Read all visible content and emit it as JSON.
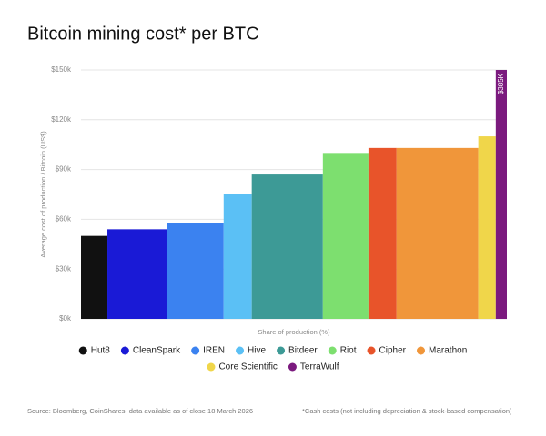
{
  "chart_data": {
    "type": "variable-width-bar",
    "title": "Bitcoin mining cost* per BTC",
    "y_label": "Average cost of production / Bitcoin (US$)",
    "x_label": "Share of production (%)",
    "categories": [
      "Hut8",
      "CleanSpark",
      "IREN",
      "Hive",
      "Bitdeer",
      "Riot",
      "Cipher",
      "Marathon",
      "Core Scientific",
      "TerraWulf"
    ],
    "values": [
      50000,
      54000,
      58000,
      75000,
      87000,
      100000,
      103000,
      103000,
      110000,
      385000
    ],
    "value_labels": [
      null,
      null,
      null,
      null,
      null,
      null,
      null,
      null,
      null,
      "$385K"
    ],
    "widths": [
      6.2,
      14.1,
      13.2,
      6.6,
      16.7,
      10.7,
      6.6,
      19.2,
      4.1,
      2.6
    ],
    "colors": [
      "#111111",
      "#1a1ad6",
      "#3b82f0",
      "#5bc0f5",
      "#3d9a96",
      "#7ddf6f",
      "#e8542a",
      "#f0963a",
      "#f0d64a",
      "#7b1a7e"
    ],
    "ylim": [
      0,
      150000
    ],
    "yticks": [
      {
        "value": 0,
        "label": "$0k"
      },
      {
        "value": 30000,
        "label": "$30k"
      },
      {
        "value": 60000,
        "label": "$60k"
      },
      {
        "value": 90000,
        "label": "$90k"
      },
      {
        "value": 120000,
        "label": "$120k"
      },
      {
        "value": 150000,
        "label": "$150k"
      }
    ],
    "grid": true,
    "source": "Source: Bloomberg, CoinShares, data available as of close 18 March 2026",
    "note": "*Cash costs (not including depreciation & stock-based compensation)"
  }
}
